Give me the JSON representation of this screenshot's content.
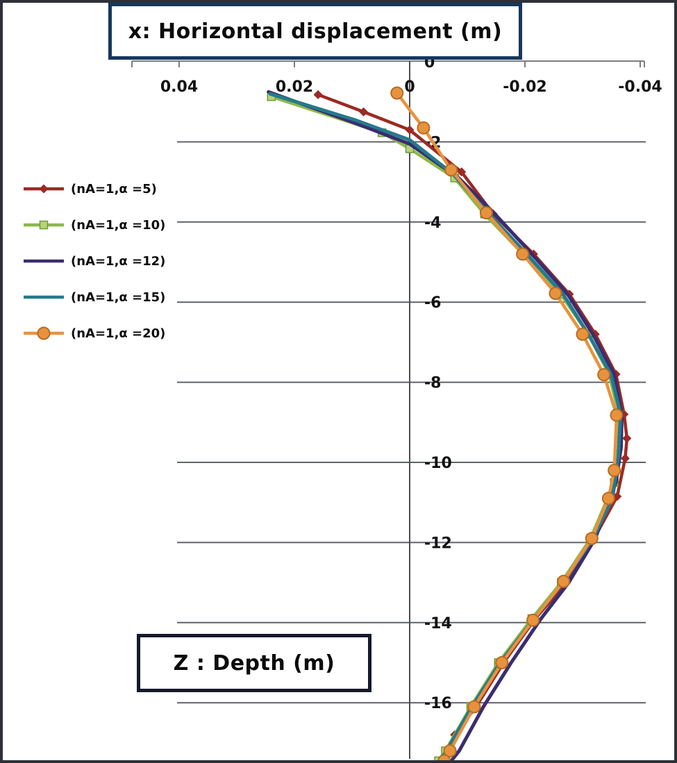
{
  "figure": {
    "x_axis_title": "x: Horizontal displacement (m)",
    "z_axis_title": "Z : Depth (m)"
  },
  "chart_data": {
    "type": "line",
    "title": "x: Horizontal displacement (m)",
    "xlabel": "x: Horizontal displacement (m)",
    "ylabel": "Z : Depth (m)",
    "xlim": [
      0.04,
      -0.04
    ],
    "ylim": [
      0,
      -17.5
    ],
    "x_ticks": [
      0.04,
      0.02,
      0,
      -0.02,
      -0.04
    ],
    "x_tick_labels": [
      "0.04",
      "0.02",
      "0",
      "-0.02",
      "-0.04"
    ],
    "y_ticks": [
      0,
      -2,
      -4,
      -6,
      -8,
      -10,
      -12,
      -14,
      -16
    ],
    "y_tick_labels": [
      "0",
      "-2",
      "-4",
      "-6",
      "-8",
      "-10",
      "-12",
      "-14",
      "-16"
    ],
    "grid": "horizontal",
    "legend_position": "left-middle",
    "x_axis_reversed": true,
    "series": [
      {
        "name": "(nA=1,α =5)",
        "color": "#9B2A24",
        "marker": "diamond",
        "marker_fill": "#9B2A24",
        "marker_edge": "#6e1c18",
        "points": [
          [
            0.0159,
            -0.82
          ],
          [
            0.008,
            -1.25
          ],
          [
            0.0,
            -1.7
          ],
          [
            -0.009,
            -2.75
          ],
          [
            -0.0145,
            -3.8
          ],
          [
            -0.0215,
            -4.8
          ],
          [
            -0.0277,
            -5.8
          ],
          [
            -0.0322,
            -6.8
          ],
          [
            -0.0358,
            -7.8
          ],
          [
            -0.0372,
            -8.8
          ],
          [
            -0.0377,
            -9.4
          ],
          [
            -0.0374,
            -9.9
          ],
          [
            -0.036,
            -10.85
          ],
          [
            -0.032,
            -11.9
          ],
          [
            -0.0272,
            -13.0
          ],
          [
            -0.0218,
            -13.9
          ],
          [
            -0.0163,
            -15.0
          ],
          [
            -0.0115,
            -16.1
          ],
          [
            -0.0078,
            -16.8
          ],
          [
            -0.0058,
            -17.45
          ]
        ]
      },
      {
        "name": "(nA=1,α =10)",
        "color": "#8CB94A",
        "marker": "square",
        "marker_fill": "#B5D37B",
        "marker_edge": "#6f9a38",
        "points": [
          [
            0.024,
            -0.87
          ],
          [
            0.0048,
            -1.77
          ],
          [
            0.0,
            -2.17
          ],
          [
            -0.0078,
            -2.9
          ],
          [
            -0.013,
            -3.8
          ],
          [
            -0.02,
            -4.85
          ],
          [
            -0.0262,
            -5.8
          ],
          [
            -0.031,
            -6.8
          ],
          [
            -0.0346,
            -7.8
          ],
          [
            -0.0363,
            -8.8
          ],
          [
            -0.0362,
            -9.6
          ],
          [
            -0.0355,
            -10.5
          ],
          [
            -0.0314,
            -11.9
          ],
          [
            -0.0263,
            -13.0
          ],
          [
            -0.0212,
            -13.9
          ],
          [
            -0.0154,
            -15.0
          ],
          [
            -0.0106,
            -16.1
          ],
          [
            -0.0062,
            -17.2
          ],
          [
            -0.005,
            -17.45
          ]
        ]
      },
      {
        "name": "(nA=1,α =12)",
        "color": "#3A2C70",
        "marker": "none",
        "marker_fill": "#3A2C70",
        "marker_edge": "#3A2C70",
        "points": [
          [
            0.0245,
            -0.75
          ],
          [
            0.01,
            -1.5
          ],
          [
            0.0,
            -2.05
          ],
          [
            -0.0085,
            -2.9
          ],
          [
            -0.0148,
            -3.8
          ],
          [
            -0.0212,
            -4.8
          ],
          [
            -0.0274,
            -5.8
          ],
          [
            -0.0318,
            -6.8
          ],
          [
            -0.0355,
            -7.8
          ],
          [
            -0.0368,
            -8.8
          ],
          [
            -0.0367,
            -9.6
          ],
          [
            -0.0358,
            -10.5
          ],
          [
            -0.0322,
            -11.9
          ],
          [
            -0.0276,
            -13.0
          ],
          [
            -0.0228,
            -13.9
          ],
          [
            -0.0176,
            -15.0
          ],
          [
            -0.0128,
            -16.1
          ],
          [
            -0.0086,
            -17.2
          ],
          [
            -0.0072,
            -17.45
          ]
        ]
      },
      {
        "name": "(nA=1,α =15)",
        "color": "#26798C",
        "marker": "none",
        "marker_fill": "#26798C",
        "marker_edge": "#26798C",
        "points": [
          [
            0.0242,
            -0.8
          ],
          [
            0.0095,
            -1.45
          ],
          [
            0.0,
            -1.95
          ],
          [
            -0.0075,
            -2.8
          ],
          [
            -0.0138,
            -3.8
          ],
          [
            -0.0203,
            -4.8
          ],
          [
            -0.0266,
            -5.8
          ],
          [
            -0.031,
            -6.8
          ],
          [
            -0.0349,
            -7.8
          ],
          [
            -0.0366,
            -8.8
          ],
          [
            -0.0362,
            -9.85
          ],
          [
            -0.0352,
            -10.9
          ],
          [
            -0.0318,
            -11.9
          ],
          [
            -0.0266,
            -13.0
          ],
          [
            -0.0216,
            -13.9
          ],
          [
            -0.0157,
            -15.0
          ],
          [
            -0.0108,
            -16.1
          ],
          [
            -0.0064,
            -17.2
          ],
          [
            -0.0052,
            -17.45
          ]
        ]
      },
      {
        "name": "(nA=1,α =20)",
        "color": "#E8923E",
        "marker": "circle",
        "marker_fill": "#E8923E",
        "marker_edge": "#B26E24",
        "points": [
          [
            0.0022,
            -0.78
          ],
          [
            -0.0024,
            -1.65
          ],
          [
            -0.0072,
            -2.7
          ],
          [
            -0.0133,
            -3.77
          ],
          [
            -0.0196,
            -4.8
          ],
          [
            -0.0253,
            -5.78
          ],
          [
            -0.03,
            -6.8
          ],
          [
            -0.0337,
            -7.81
          ],
          [
            -0.0359,
            -8.82
          ],
          [
            -0.0355,
            -10.2
          ],
          [
            -0.0345,
            -10.9
          ],
          [
            -0.0316,
            -11.9
          ],
          [
            -0.0267,
            -12.97
          ],
          [
            -0.0214,
            -13.94
          ],
          [
            -0.016,
            -15.0
          ],
          [
            -0.0112,
            -16.1
          ],
          [
            -0.007,
            -17.2
          ],
          [
            -0.006,
            -17.45
          ]
        ]
      }
    ]
  },
  "legend": {
    "items": [
      {
        "label": "(nA=1,α =5)"
      },
      {
        "label": "(nA=1,α =10)"
      },
      {
        "label": "(nA=1,α =12)"
      },
      {
        "label": "(nA=1,α =15)"
      },
      {
        "label": "(nA=1,α =20)"
      }
    ]
  }
}
